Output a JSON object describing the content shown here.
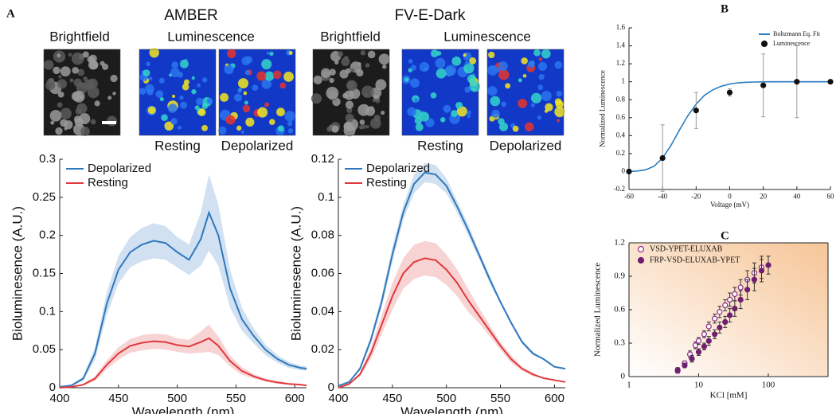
{
  "panels_images": [
    {
      "title": "AMBER",
      "brightfield": "Brightfield",
      "luminescence": "Luminescence",
      "states": [
        "Resting",
        "Depolarized"
      ]
    },
    {
      "title": "FV-E-Dark",
      "brightfield": "Brightfield",
      "luminescence": "Luminescence",
      "states": [
        "Resting",
        "Depolarized"
      ]
    }
  ],
  "chart_data": [
    {
      "type": "line",
      "panel": "A",
      "xlabel": "Wavelength (nm)",
      "ylabel": "Bioluminesence (A.U.)",
      "x": [
        400,
        410,
        420,
        430,
        440,
        450,
        460,
        470,
        480,
        490,
        500,
        510,
        520,
        527,
        535,
        545,
        555,
        565,
        575,
        585,
        595,
        605,
        610
      ],
      "xlim": [
        400,
        610
      ],
      "xticks": [
        400,
        450,
        500,
        550,
        600
      ],
      "ylim": [
        0,
        0.3
      ],
      "yticks": [
        0,
        0.05,
        0.1,
        0.15,
        0.2,
        0.25,
        0.3
      ],
      "legend": "upper left",
      "series": [
        {
          "name": "Depolarized",
          "color": "#2f78bd",
          "style": "line",
          "error_display": "band",
          "values": [
            0.001,
            0.003,
            0.012,
            0.045,
            0.11,
            0.155,
            0.178,
            0.188,
            0.193,
            0.19,
            0.178,
            0.168,
            0.195,
            0.23,
            0.2,
            0.13,
            0.09,
            0.068,
            0.05,
            0.038,
            0.03,
            0.026,
            0.025
          ],
          "errors": [
            0,
            0.001,
            0.003,
            0.008,
            0.015,
            0.018,
            0.02,
            0.022,
            0.023,
            0.022,
            0.02,
            0.02,
            0.035,
            0.05,
            0.04,
            0.025,
            0.015,
            0.01,
            0.007,
            0.005,
            0.004,
            0.003,
            0.003
          ]
        },
        {
          "name": "Resting",
          "color": "#e0383c",
          "style": "line",
          "error_display": "band",
          "values": [
            0,
            0.001,
            0.004,
            0.012,
            0.03,
            0.045,
            0.055,
            0.059,
            0.061,
            0.06,
            0.056,
            0.054,
            0.06,
            0.065,
            0.055,
            0.035,
            0.022,
            0.015,
            0.01,
            0.007,
            0.005,
            0.004,
            0.003
          ],
          "errors": [
            0,
            0,
            0.001,
            0.003,
            0.006,
            0.008,
            0.009,
            0.01,
            0.01,
            0.01,
            0.009,
            0.009,
            0.014,
            0.018,
            0.012,
            0.007,
            0.005,
            0.003,
            0.002,
            0.002,
            0.001,
            0.001,
            0.001
          ]
        }
      ]
    },
    {
      "type": "line",
      "xlabel": "Wavelength (nm)",
      "ylabel": "Bioluminesence (A.U.)",
      "x": [
        400,
        410,
        420,
        430,
        440,
        450,
        460,
        470,
        480,
        490,
        500,
        510,
        520,
        530,
        540,
        550,
        560,
        570,
        580,
        590,
        600,
        610
      ],
      "xlim": [
        400,
        610
      ],
      "xticks": [
        400,
        450,
        500,
        550,
        600
      ],
      "ylim": [
        0,
        0.12
      ],
      "yticks": [
        0,
        0.02,
        0.04,
        0.06,
        0.08,
        0.1,
        0.12
      ],
      "legend": "upper left",
      "series": [
        {
          "name": "Depolarized",
          "color": "#2f78bd",
          "style": "line",
          "error_display": "band",
          "values": [
            0.001,
            0.003,
            0.01,
            0.025,
            0.045,
            0.07,
            0.092,
            0.107,
            0.113,
            0.112,
            0.106,
            0.095,
            0.083,
            0.07,
            0.057,
            0.045,
            0.034,
            0.024,
            0.018,
            0.015,
            0.011,
            0.01
          ],
          "errors": [
            0,
            0,
            0.001,
            0.002,
            0.003,
            0.004,
            0.004,
            0.005,
            0.005,
            0.005,
            0.004,
            0.003,
            0.003,
            0.002,
            0.002,
            0.001,
            0.001,
            0.001,
            0.001,
            0,
            0,
            0
          ]
        },
        {
          "name": "Resting",
          "color": "#e0383c",
          "style": "line",
          "error_display": "band",
          "values": [
            0,
            0.002,
            0.007,
            0.018,
            0.033,
            0.048,
            0.06,
            0.066,
            0.068,
            0.067,
            0.062,
            0.055,
            0.046,
            0.038,
            0.03,
            0.022,
            0.015,
            0.01,
            0.007,
            0.005,
            0.004,
            0.003
          ],
          "errors": [
            0,
            0,
            0.001,
            0.003,
            0.005,
            0.007,
            0.008,
            0.009,
            0.009,
            0.009,
            0.008,
            0.007,
            0.006,
            0.004,
            0.003,
            0.002,
            0.002,
            0.001,
            0.001,
            0,
            0,
            0
          ]
        }
      ]
    },
    {
      "type": "line",
      "panel": "B",
      "xlabel": "Voltage (mV)",
      "ylabel": "Normalized Luminescence",
      "xlim": [
        -60,
        60
      ],
      "xticks": [
        -60,
        -40,
        -20,
        0,
        20,
        40,
        60
      ],
      "ylim": [
        -0.2,
        1.6
      ],
      "yticks": [
        -0.2,
        0,
        0.2,
        0.4,
        0.6,
        0.8,
        1,
        1.2,
        1.4,
        1.6
      ],
      "legend": "upper right",
      "series": [
        {
          "name": "Boltzmann Eq. Fit",
          "color": "#2a7bc0",
          "style": "line",
          "x": [
            -60,
            -55,
            -50,
            -45,
            -40,
            -35,
            -30,
            -25,
            -20,
            -15,
            -10,
            -5,
            0,
            5,
            10,
            15,
            20,
            25,
            30,
            35,
            40,
            45,
            50,
            55,
            60
          ],
          "values": [
            0,
            0.006,
            0.02,
            0.06,
            0.15,
            0.29,
            0.46,
            0.62,
            0.75,
            0.85,
            0.91,
            0.95,
            0.975,
            0.988,
            0.994,
            0.997,
            0.999,
            1,
            1,
            1,
            1,
            1,
            1,
            1,
            1
          ]
        },
        {
          "name": "Luminescence",
          "color": "#111111",
          "style": "markers",
          "marker": "filled",
          "error_display": "bars",
          "error_color": "#999999",
          "x": [
            -60,
            -40,
            -20,
            0,
            20,
            40,
            60
          ],
          "values": [
            0,
            0.15,
            0.68,
            0.88,
            0.96,
            1,
            1
          ],
          "errors": [
            0.02,
            0.37,
            0.2,
            0.04,
            0.35,
            0.4,
            0.01
          ]
        }
      ]
    },
    {
      "type": "scatter",
      "panel": "C",
      "xlabel": "KCl [mM]",
      "ylabel": "Normalized Luminescence",
      "xscale": "log",
      "xlim": [
        1,
        720
      ],
      "xticks": [
        1,
        10,
        100
      ],
      "ylim": [
        0,
        1.2
      ],
      "yticks": [
        0,
        0.3,
        0.6,
        0.9,
        1.2
      ],
      "legend": "upper left",
      "background": "#f6c597",
      "series": [
        {
          "name": "VSD-YPET-ELUXAB",
          "color": "#8b2a8b",
          "style": "markers",
          "marker": "open",
          "error_display": "bars",
          "error_color": "#333333",
          "x": [
            5,
            6.3,
            7.5,
            9,
            10,
            12,
            14,
            17,
            20,
            24,
            28,
            33,
            40,
            50,
            63,
            80
          ],
          "values": [
            0.05,
            0.12,
            0.2,
            0.28,
            0.32,
            0.38,
            0.45,
            0.52,
            0.58,
            0.64,
            0.69,
            0.74,
            0.8,
            0.87,
            0.93,
            0.98
          ],
          "errors": [
            0.02,
            0.02,
            0.03,
            0.03,
            0.03,
            0.03,
            0.04,
            0.04,
            0.05,
            0.05,
            0.06,
            0.06,
            0.07,
            0.08,
            0.09,
            0.1
          ]
        },
        {
          "name": "FRP-VSD-ELUXAB-YPET",
          "color": "#6e1f6e",
          "style": "markers",
          "marker": "filled",
          "error_display": "bars",
          "error_color": "#333333",
          "x": [
            5,
            6.3,
            8,
            10,
            12,
            14,
            17,
            20,
            24,
            28,
            33,
            40,
            50,
            63,
            80,
            100
          ],
          "values": [
            0.06,
            0.1,
            0.16,
            0.22,
            0.27,
            0.32,
            0.38,
            0.44,
            0.49,
            0.55,
            0.61,
            0.69,
            0.78,
            0.87,
            0.95,
            1.0
          ],
          "errors": [
            0.02,
            0.02,
            0.03,
            0.03,
            0.03,
            0.04,
            0.04,
            0.05,
            0.05,
            0.06,
            0.07,
            0.08,
            0.09,
            0.1,
            0.1,
            0.08
          ]
        }
      ]
    }
  ]
}
